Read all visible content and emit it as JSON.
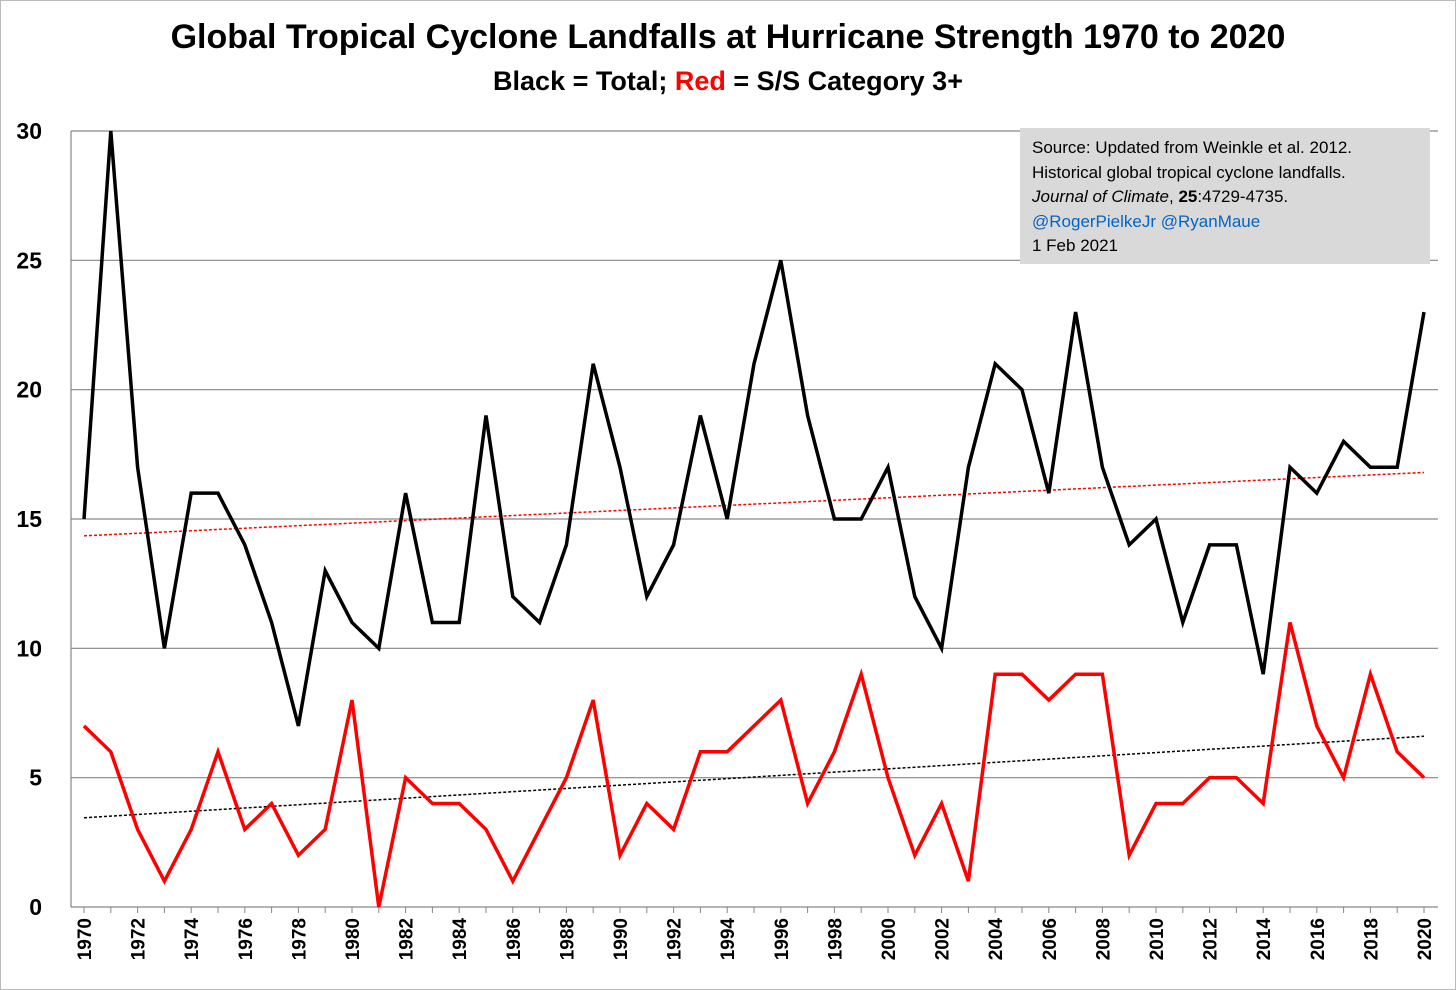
{
  "chart_data": {
    "type": "line",
    "title": "Global Tropical Cyclone Landfalls at Hurricane Strength 1970 to 2020",
    "subtitle": {
      "part1": "Black = Total; ",
      "part2": "Red",
      "part3": " = S/S Category 3+"
    },
    "xlabel": "",
    "ylabel": "",
    "ylim": [
      0,
      30
    ],
    "yticks": [
      "0",
      "5",
      "10",
      "15",
      "20",
      "25",
      "30"
    ],
    "xlim": [
      1970,
      2020
    ],
    "grid": true,
    "x": [
      1970,
      1971,
      1972,
      1973,
      1974,
      1975,
      1976,
      1977,
      1978,
      1979,
      1980,
      1981,
      1982,
      1983,
      1984,
      1985,
      1986,
      1987,
      1988,
      1989,
      1990,
      1991,
      1992,
      1993,
      1994,
      1995,
      1996,
      1997,
      1998,
      1999,
      2000,
      2001,
      2002,
      2003,
      2004,
      2005,
      2006,
      2007,
      2008,
      2009,
      2010,
      2011,
      2012,
      2013,
      2014,
      2015,
      2016,
      2017,
      2018,
      2019,
      2020
    ],
    "series": [
      {
        "name": "Total",
        "color": "#000000",
        "values": [
          15,
          30,
          17,
          10,
          16,
          16,
          14,
          11,
          7,
          13,
          11,
          10,
          16,
          11,
          11,
          19,
          12,
          11,
          14,
          21,
          17,
          12,
          14,
          19,
          15,
          21,
          25,
          19,
          15,
          15,
          17,
          12,
          10,
          17,
          21,
          20,
          16,
          23,
          17,
          14,
          15,
          11,
          14,
          14,
          9,
          17,
          16,
          18,
          17,
          17,
          23
        ]
      },
      {
        "name": "S/S Category 3+",
        "color": "#ff0000",
        "values": [
          7,
          6,
          3,
          1,
          3,
          6,
          3,
          4,
          2,
          3,
          8,
          0,
          5,
          4,
          4,
          3,
          1,
          3,
          5,
          8,
          2,
          4,
          3,
          6,
          6,
          7,
          8,
          4,
          6,
          9,
          5,
          2,
          4,
          1,
          9,
          9,
          8,
          9,
          9,
          2,
          4,
          4,
          5,
          5,
          4,
          11,
          7,
          5,
          9,
          6,
          5
        ]
      }
    ],
    "trendlines": [
      {
        "of": "Total",
        "color": "#ff0000",
        "style": "dotted",
        "start": 14.35,
        "end": 16.8
      },
      {
        "of": "S/S Category 3+",
        "color": "#000000",
        "style": "dotted",
        "start": 3.45,
        "end": 6.6
      }
    ],
    "annotation": {
      "line1": "Source: Updated from Weinkle et al. 2012.",
      "line2": "Historical global tropical cyclone landfalls.",
      "journal": "Journal of Climate",
      "sep": ", ",
      "volume": "25",
      "pages": ":4729-4735.",
      "handles": "@RogerPielkeJr @RyanMaue",
      "date": "1 Feb 2021"
    }
  }
}
